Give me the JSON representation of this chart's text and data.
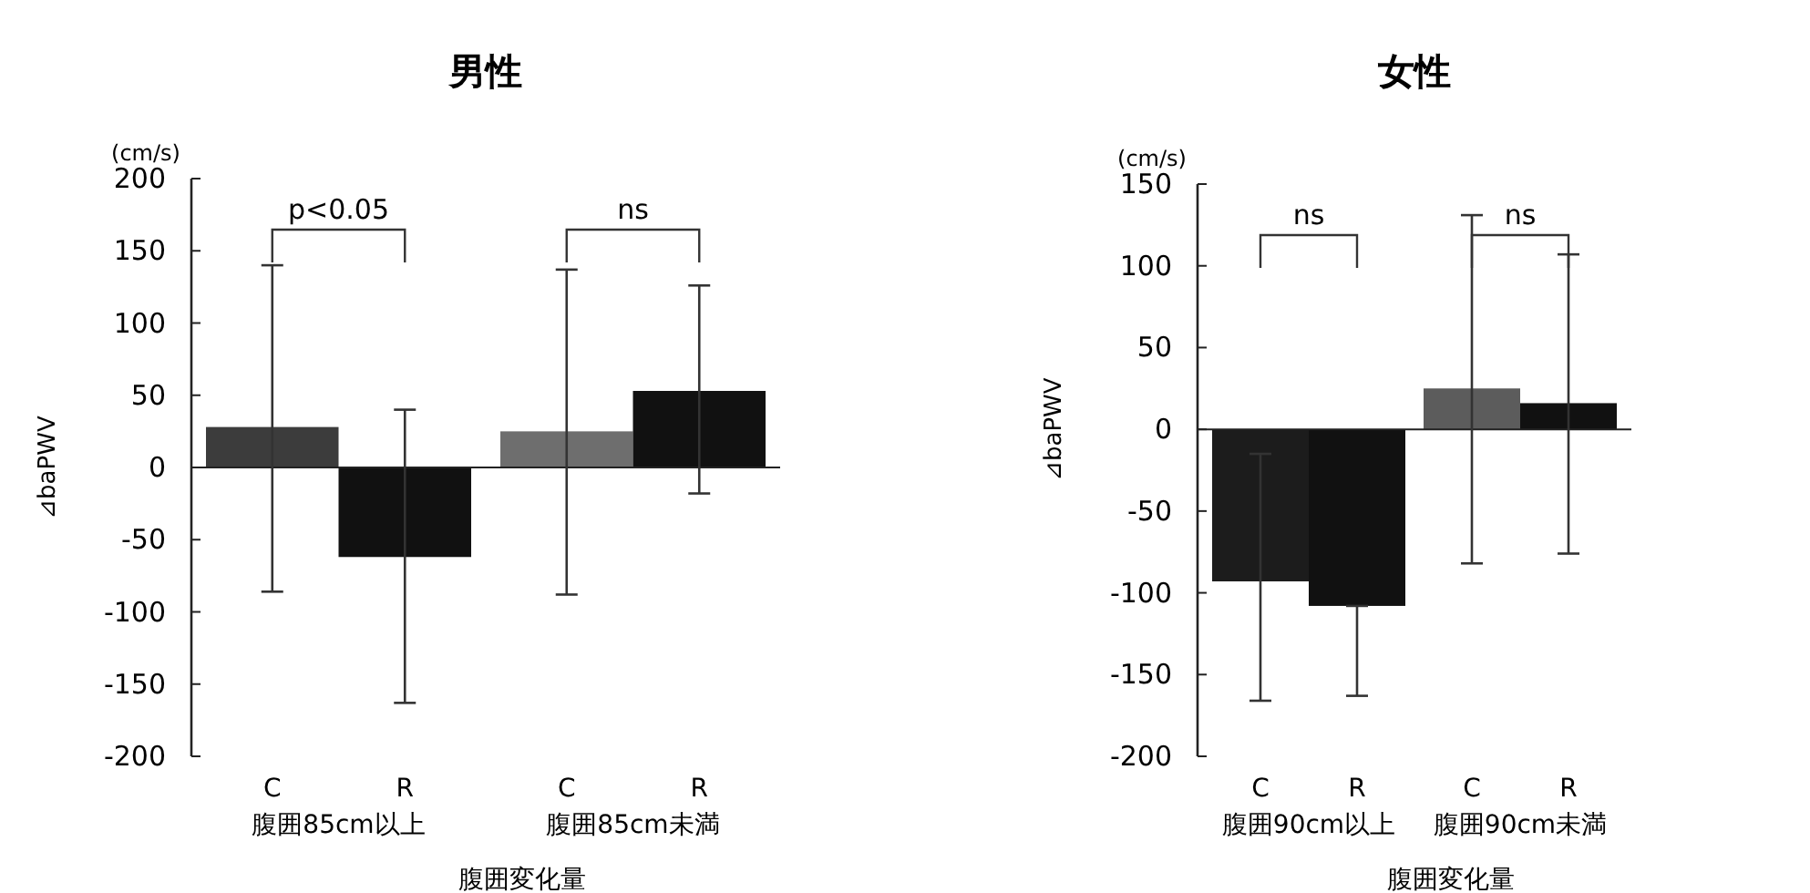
{
  "chart_data": [
    {
      "type": "bar",
      "title": "男性",
      "xlabel": "腹囲変化量",
      "ylabel": "⊿baPWV",
      "categories": [
        "C",
        "R",
        "C",
        "R"
      ],
      "values": [
        28,
        -62,
        25,
        53
      ],
      "colors": [
        "#3c3c3c",
        "#111111",
        "#6e6e6e",
        "#111111"
      ],
      "errors": [
        [
          -86,
          140
        ],
        [
          -163,
          40
        ],
        [
          -88,
          137
        ],
        [
          -18,
          126
        ]
      ],
      "ylim": [
        -200,
        200
      ],
      "yticks": [
        -200,
        -150,
        -100,
        -50,
        0,
        50,
        100,
        150,
        200
      ],
      "annotations": [
        "(cm/s)",
        "p<0.05",
        "ns",
        "腹囲85cm以上",
        "腹囲85cm未満"
      ]
    },
    {
      "type": "bar",
      "title": "女性",
      "xlabel": "腹囲変化量",
      "ylabel": "⊿baPWV",
      "categories": [
        "C",
        "R",
        "C",
        "R"
      ],
      "values": [
        -93,
        -108,
        25,
        16
      ],
      "colors": [
        "#1c1c1c",
        "#111111",
        "#5c5c5c",
        "#111111"
      ],
      "errors": [
        [
          -166,
          -15
        ],
        [
          -163,
          -108
        ],
        [
          -82,
          131
        ],
        [
          -76,
          107
        ]
      ],
      "ylim": [
        -200,
        150
      ],
      "yticks": [
        -200,
        -150,
        -100,
        -50,
        0,
        50,
        100,
        150
      ],
      "annotations": [
        "(cm/s)",
        "ns",
        "ns",
        "腹囲90cm以上",
        "腹囲90cm未満"
      ]
    }
  ]
}
